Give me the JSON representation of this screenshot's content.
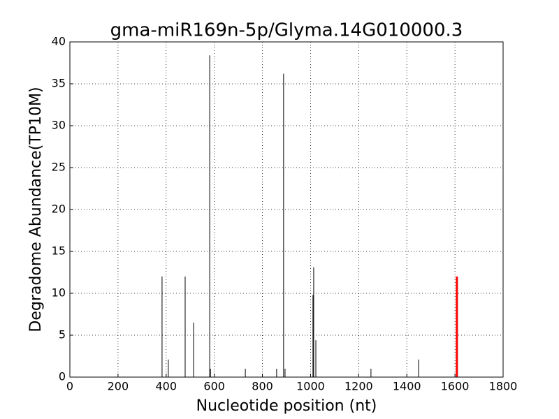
{
  "chart_data": {
    "type": "stem",
    "title": "gma-miR169n-5p/Glyma.14G010000.3",
    "x_label": "Nucleotide position (nt)",
    "y_label": "Degradome Abundance(TP10M)",
    "series": [
      {
        "color": "#000000",
        "width": 1,
        "x": [
          383,
          409,
          479,
          514,
          581,
          584,
          729,
          859,
          888,
          894,
          1010,
          1013,
          1022,
          1251,
          1449
        ],
        "values": [
          12,
          2.1,
          12,
          6.5,
          38.4,
          1,
          1,
          1,
          36.2,
          1,
          9.8,
          13.1,
          4.4,
          1,
          2.1
        ]
      },
      {
        "color": "#ff0000",
        "width": 3,
        "x": [
          1608
        ],
        "values": [
          12
        ]
      }
    ],
    "xlim": [
      0,
      1800
    ],
    "xticks": [
      0,
      200,
      400,
      600,
      800,
      1000,
      1200,
      1400,
      1600,
      1800
    ],
    "ylim": [
      0,
      40
    ],
    "yticks": [
      0,
      5,
      10,
      15,
      20,
      25,
      30,
      35,
      40
    ],
    "grid": true
  }
}
